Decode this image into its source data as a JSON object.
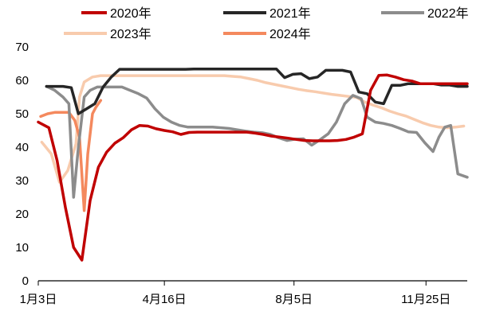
{
  "chart_data": {
    "type": "line",
    "title": "",
    "xlabel": "",
    "ylabel": "",
    "x_domain": [
      1,
      365
    ],
    "ylim": [
      0,
      70
    ],
    "yticks": [
      0,
      10,
      20,
      30,
      40,
      50,
      60,
      70
    ],
    "xticks": [
      {
        "label": "1月3日",
        "x": 1
      },
      {
        "label": "4月16日",
        "x": 108
      },
      {
        "label": "8月5日",
        "x": 218
      },
      {
        "label": "11月25日",
        "x": 330
      }
    ],
    "legend_position": "top",
    "series": [
      {
        "name": "2020年",
        "color": "#c00000",
        "points": [
          [
            1,
            47.5
          ],
          [
            10,
            45.8
          ],
          [
            17,
            36
          ],
          [
            24,
            22
          ],
          [
            31,
            10
          ],
          [
            38,
            6.2
          ],
          [
            45,
            24
          ],
          [
            52,
            34
          ],
          [
            59,
            38.5
          ],
          [
            66,
            41.2
          ],
          [
            73,
            42.8
          ],
          [
            80,
            45.2
          ],
          [
            87,
            46.5
          ],
          [
            94,
            46.3
          ],
          [
            101,
            45.5
          ],
          [
            108,
            45
          ],
          [
            115,
            44.6
          ],
          [
            122,
            43.8
          ],
          [
            129,
            44.4
          ],
          [
            136,
            44.5
          ],
          [
            143,
            44.5
          ],
          [
            150,
            44.5
          ],
          [
            157,
            44.5
          ],
          [
            164,
            44.5
          ],
          [
            171,
            44.5
          ],
          [
            178,
            44.5
          ],
          [
            185,
            44.2
          ],
          [
            192,
            43.8
          ],
          [
            199,
            43.3
          ],
          [
            206,
            43
          ],
          [
            213,
            42.7
          ],
          [
            220,
            42.3
          ],
          [
            227,
            42
          ],
          [
            234,
            41.9
          ],
          [
            241,
            41.9
          ],
          [
            248,
            41.9
          ],
          [
            255,
            42
          ],
          [
            262,
            42.3
          ],
          [
            269,
            43
          ],
          [
            276,
            44
          ],
          [
            283,
            57
          ],
          [
            290,
            61.5
          ],
          [
            297,
            61.6
          ],
          [
            304,
            61
          ],
          [
            311,
            60.2
          ],
          [
            318,
            59.8
          ],
          [
            325,
            59
          ],
          [
            332,
            59
          ],
          [
            339,
            59
          ],
          [
            346,
            59
          ],
          [
            353,
            59
          ],
          [
            360,
            59
          ],
          [
            365,
            59
          ]
        ]
      },
      {
        "name": "2021年",
        "color": "#262626",
        "points": [
          [
            8,
            58.2
          ],
          [
            15,
            58.2
          ],
          [
            22,
            58.2
          ],
          [
            29,
            57.8
          ],
          [
            35,
            50
          ],
          [
            42,
            51.5
          ],
          [
            49,
            53
          ],
          [
            56,
            58
          ],
          [
            63,
            61
          ],
          [
            70,
            63.3
          ],
          [
            77,
            63.3
          ],
          [
            84,
            63.3
          ],
          [
            91,
            63.3
          ],
          [
            98,
            63.3
          ],
          [
            105,
            63.3
          ],
          [
            112,
            63.3
          ],
          [
            119,
            63.3
          ],
          [
            126,
            63.3
          ],
          [
            133,
            63.4
          ],
          [
            140,
            63.4
          ],
          [
            147,
            63.4
          ],
          [
            154,
            63.4
          ],
          [
            161,
            63.4
          ],
          [
            168,
            63.4
          ],
          [
            175,
            63.4
          ],
          [
            182,
            63.4
          ],
          [
            189,
            63.4
          ],
          [
            196,
            63.4
          ],
          [
            203,
            63.4
          ],
          [
            210,
            60.8
          ],
          [
            217,
            61.8
          ],
          [
            224,
            62
          ],
          [
            231,
            60.5
          ],
          [
            238,
            61
          ],
          [
            245,
            63
          ],
          [
            252,
            63
          ],
          [
            259,
            63
          ],
          [
            266,
            62.5
          ],
          [
            273,
            56.5
          ],
          [
            280,
            56
          ],
          [
            287,
            53.5
          ],
          [
            294,
            53
          ],
          [
            301,
            58.5
          ],
          [
            308,
            58.5
          ],
          [
            315,
            59
          ],
          [
            322,
            59
          ],
          [
            329,
            59
          ],
          [
            336,
            59
          ],
          [
            343,
            58.6
          ],
          [
            350,
            58.6
          ],
          [
            357,
            58.2
          ],
          [
            365,
            58.2
          ]
        ]
      },
      {
        "name": "2022年",
        "color": "#8c8c8c",
        "points": [
          [
            8,
            58.2
          ],
          [
            15,
            57
          ],
          [
            22,
            55
          ],
          [
            27,
            53
          ],
          [
            31,
            25
          ],
          [
            35,
            40
          ],
          [
            40,
            55
          ],
          [
            45,
            57
          ],
          [
            51,
            58
          ],
          [
            58,
            58
          ],
          [
            65,
            58
          ],
          [
            72,
            58
          ],
          [
            79,
            57
          ],
          [
            86,
            56
          ],
          [
            93,
            54.7
          ],
          [
            100,
            51.5
          ],
          [
            107,
            49
          ],
          [
            114,
            47.5
          ],
          [
            121,
            46.5
          ],
          [
            128,
            46
          ],
          [
            135,
            46
          ],
          [
            142,
            46
          ],
          [
            149,
            46
          ],
          [
            156,
            45.8
          ],
          [
            163,
            45.6
          ],
          [
            170,
            45.2
          ],
          [
            177,
            44.8
          ],
          [
            184,
            44.5
          ],
          [
            191,
            44.3
          ],
          [
            198,
            43.8
          ],
          [
            205,
            42.8
          ],
          [
            212,
            42
          ],
          [
            219,
            42.4
          ],
          [
            226,
            42.5
          ],
          [
            233,
            40.6
          ],
          [
            240,
            42.2
          ],
          [
            247,
            44
          ],
          [
            254,
            47.5
          ],
          [
            261,
            53
          ],
          [
            268,
            55.5
          ],
          [
            275,
            54.5
          ],
          [
            280,
            49
          ],
          [
            287,
            47.5
          ],
          [
            294,
            47.1
          ],
          [
            301,
            46.5
          ],
          [
            308,
            45.6
          ],
          [
            315,
            44.6
          ],
          [
            322,
            44.4
          ],
          [
            329,
            41.3
          ],
          [
            336,
            38.7
          ],
          [
            341,
            43
          ],
          [
            346,
            46
          ],
          [
            351,
            46.5
          ],
          [
            357,
            32
          ],
          [
            365,
            31
          ]
        ]
      },
      {
        "name": "2023年",
        "color": "#f8cbad",
        "points": [
          [
            4,
            41.5
          ],
          [
            12,
            38
          ],
          [
            19,
            29.5
          ],
          [
            26,
            33
          ],
          [
            33,
            41
          ],
          [
            36,
            55
          ],
          [
            40,
            59.5
          ],
          [
            47,
            61
          ],
          [
            54,
            61.4
          ],
          [
            61,
            61.4
          ],
          [
            68,
            61.4
          ],
          [
            75,
            61.4
          ],
          [
            82,
            61.4
          ],
          [
            89,
            61.4
          ],
          [
            96,
            61.4
          ],
          [
            103,
            61.4
          ],
          [
            110,
            61.4
          ],
          [
            117,
            61.4
          ],
          [
            124,
            61.4
          ],
          [
            131,
            61.4
          ],
          [
            138,
            61.4
          ],
          [
            145,
            61.4
          ],
          [
            152,
            61.4
          ],
          [
            159,
            61.4
          ],
          [
            166,
            61.2
          ],
          [
            173,
            61
          ],
          [
            180,
            60.5
          ],
          [
            187,
            60
          ],
          [
            194,
            59.3
          ],
          [
            201,
            58.8
          ],
          [
            208,
            58.3
          ],
          [
            215,
            57.8
          ],
          [
            222,
            57.3
          ],
          [
            229,
            56.9
          ],
          [
            236,
            56.6
          ],
          [
            243,
            56.2
          ],
          [
            250,
            55.8
          ],
          [
            257,
            55.5
          ],
          [
            264,
            55.2
          ],
          [
            271,
            54.9
          ],
          [
            278,
            53.5
          ],
          [
            285,
            52.6
          ],
          [
            292,
            51.8
          ],
          [
            299,
            50.8
          ],
          [
            306,
            50
          ],
          [
            313,
            49.3
          ],
          [
            320,
            48.3
          ],
          [
            327,
            47.3
          ],
          [
            334,
            46.5
          ],
          [
            341,
            46
          ],
          [
            348,
            45.8
          ],
          [
            355,
            46
          ],
          [
            362,
            46.3
          ]
        ]
      },
      {
        "name": "2024年",
        "color": "#f4895e",
        "points": [
          [
            3,
            49.2
          ],
          [
            9,
            50
          ],
          [
            15,
            50.4
          ],
          [
            21,
            50.4
          ],
          [
            27,
            50.4
          ],
          [
            32,
            48
          ],
          [
            36,
            43
          ],
          [
            40,
            21
          ],
          [
            43,
            38
          ],
          [
            47,
            50
          ],
          [
            50,
            52
          ],
          [
            54,
            54
          ]
        ]
      }
    ]
  }
}
